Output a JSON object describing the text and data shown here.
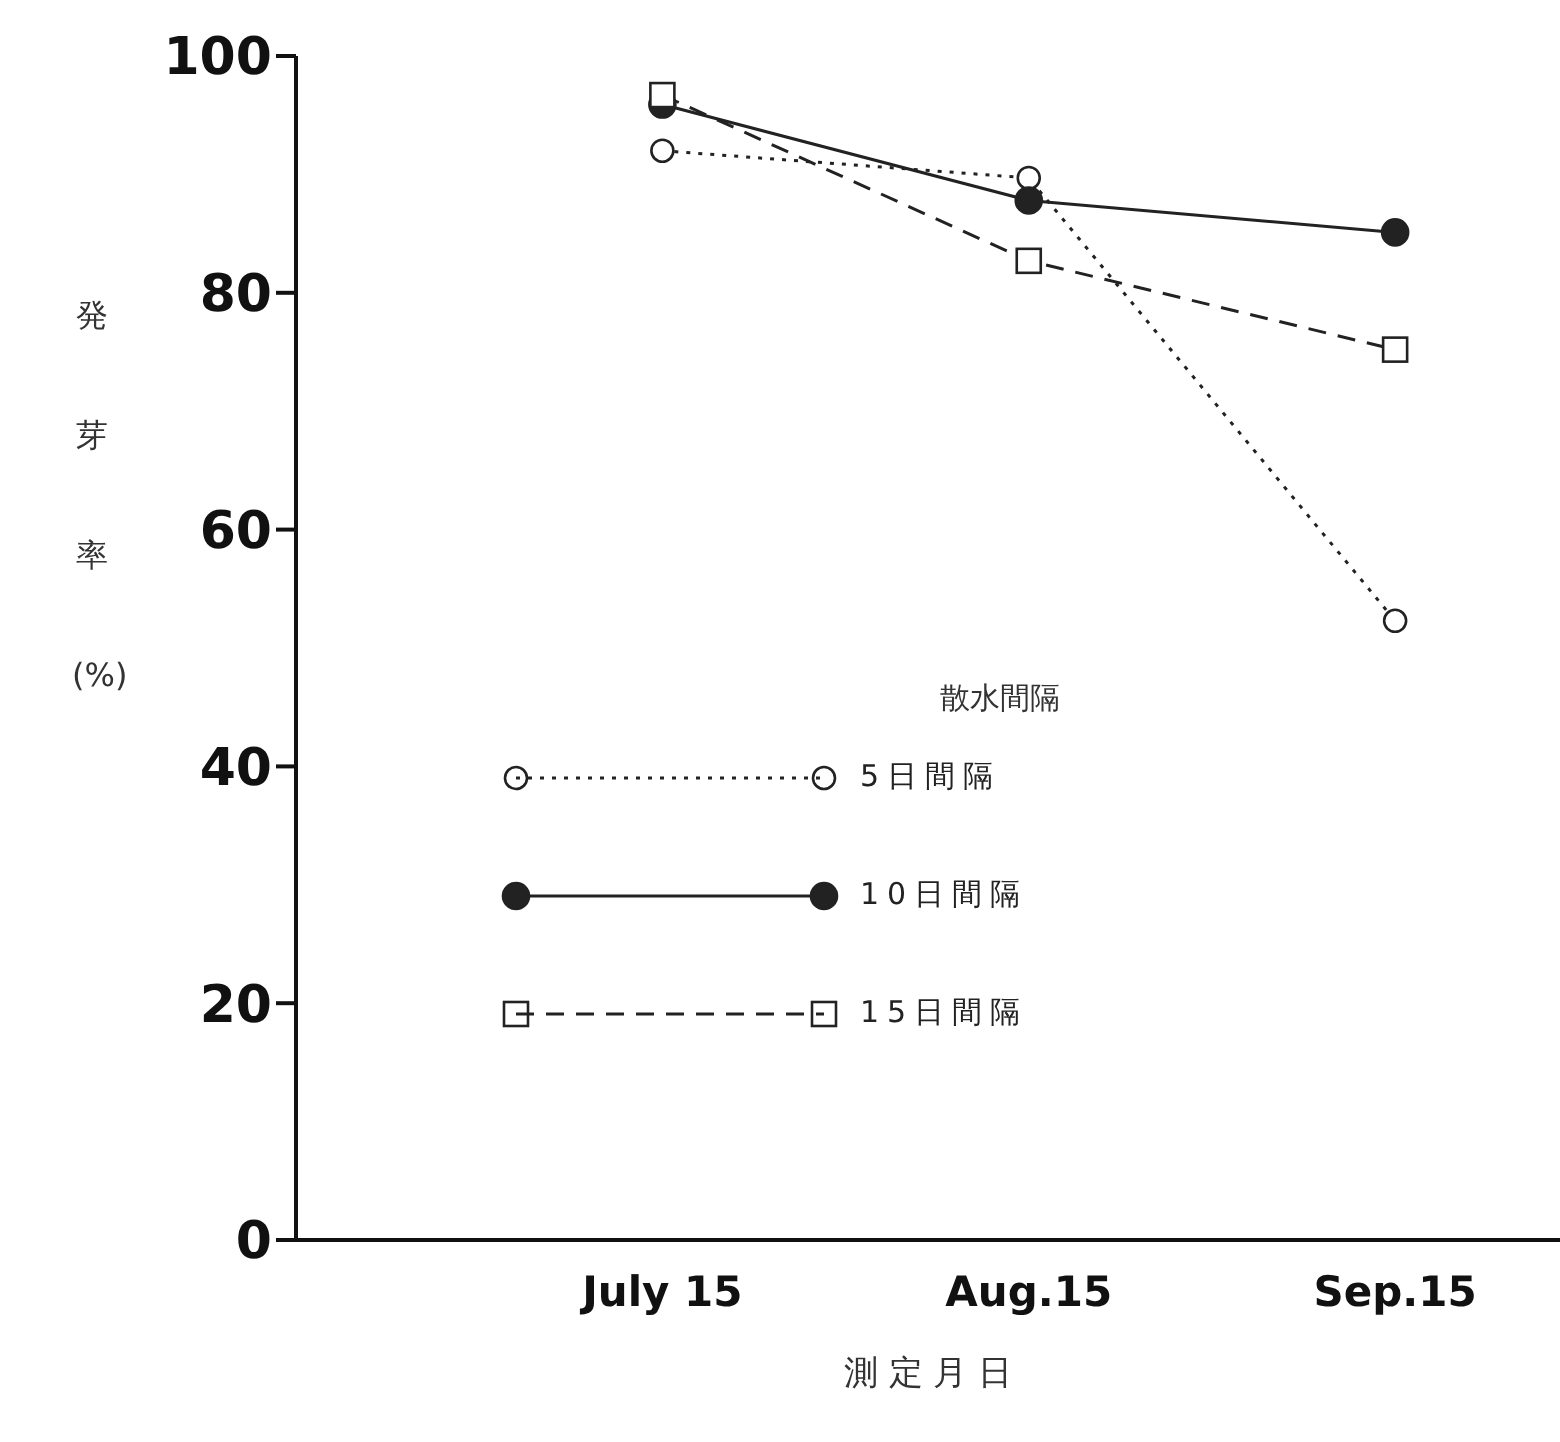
{
  "chart_data": {
    "type": "line",
    "ylabel": "発芽率(%)",
    "xlabel": "測 定 月 日",
    "legend_title": "散水間隔",
    "categories": [
      "July 15",
      "Aug.15",
      "Sep.15"
    ],
    "series": [
      {
        "name": "5日間隔",
        "color": "#222222",
        "marker": "circle",
        "line_style": "dotted",
        "values": [
          92.0,
          89.7,
          52.3
        ]
      },
      {
        "name": "10日間隔",
        "color": "#222222",
        "marker": "circle",
        "line_style": "solid",
        "values": [
          95.9,
          87.8,
          85.1
        ]
      },
      {
        "name": "15日間隔",
        "color": "#222222",
        "marker": "square",
        "line_style": "dashed",
        "values": [
          96.7,
          82.7,
          75.2
        ]
      }
    ],
    "ylim": [
      0,
      100
    ],
    "yticks": [
      0,
      20,
      40,
      60,
      80,
      100
    ],
    "grid": false,
    "legend": "bottom"
  }
}
